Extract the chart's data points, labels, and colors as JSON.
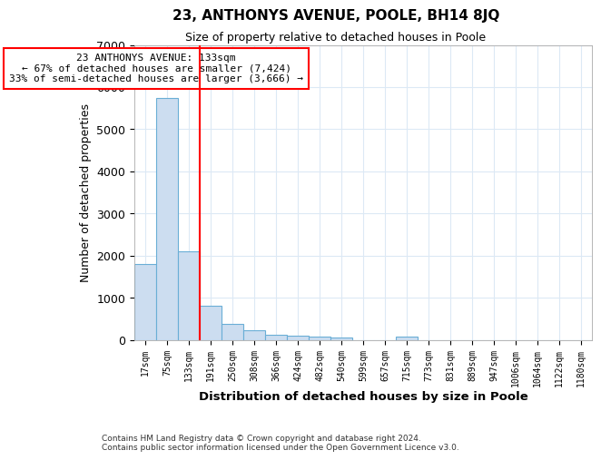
{
  "title": "23, ANTHONYS AVENUE, POOLE, BH14 8JQ",
  "subtitle": "Size of property relative to detached houses in Poole",
  "xlabel": "Distribution of detached houses by size in Poole",
  "ylabel": "Number of detached properties",
  "categories": [
    "17sqm",
    "75sqm",
    "133sqm",
    "191sqm",
    "250sqm",
    "308sqm",
    "366sqm",
    "424sqm",
    "482sqm",
    "540sqm",
    "599sqm",
    "657sqm",
    "715sqm",
    "773sqm",
    "831sqm",
    "889sqm",
    "947sqm",
    "1006sqm",
    "1064sqm",
    "1122sqm",
    "1180sqm"
  ],
  "bar_heights": [
    1800,
    5750,
    2100,
    800,
    370,
    230,
    115,
    90,
    75,
    50,
    0,
    0,
    75,
    0,
    0,
    0,
    0,
    0,
    0,
    0,
    0
  ],
  "bar_color": "#ccddf0",
  "bar_edgecolor": "#6aaed6",
  "vline_cat_index": 2,
  "vline_color": "red",
  "annotation_text": "23 ANTHONYS AVENUE: 133sqm\n← 67% of detached houses are smaller (7,424)\n33% of semi-detached houses are larger (3,666) →",
  "annotation_box_edgecolor": "red",
  "annotation_box_facecolor": "white",
  "ylim": [
    0,
    7000
  ],
  "yticks": [
    0,
    1000,
    2000,
    3000,
    4000,
    5000,
    6000,
    7000
  ],
  "footnote1": "Contains HM Land Registry data © Crown copyright and database right 2024.",
  "footnote2": "Contains public sector information licensed under the Open Government Licence v3.0.",
  "bg_color": "#ffffff",
  "plot_bg_color": "#ffffff",
  "grid_color": "#dce9f5"
}
